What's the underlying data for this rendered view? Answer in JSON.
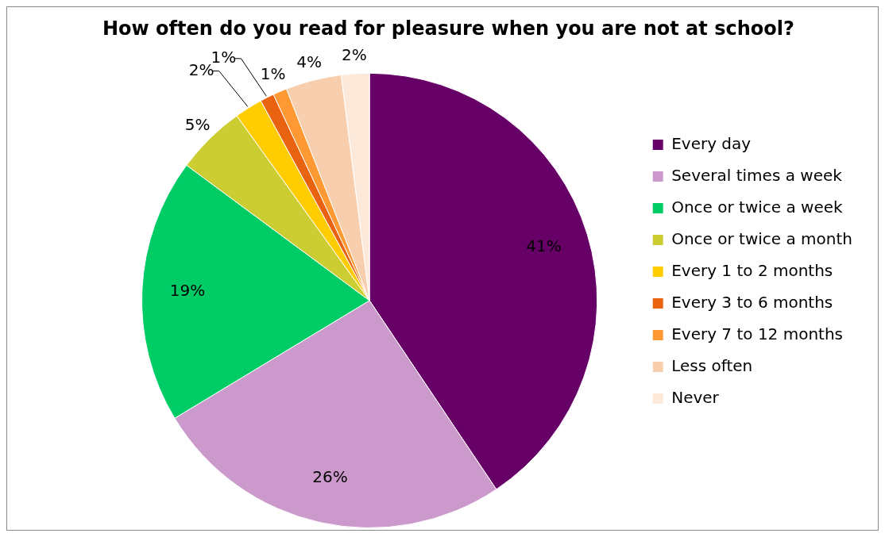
{
  "chart_data": {
    "type": "pie",
    "title": "How often do you read for pleasure when you are not at school?",
    "categories": [
      "Every day",
      "Several times a week",
      "Once or twice a week",
      "Once or twice a month",
      "Every 1 to 2 months",
      "Every 3 to 6 months",
      "Every 7 to 12 months",
      "Less often",
      "Never"
    ],
    "values": [
      41,
      26,
      19,
      5,
      2,
      1,
      1,
      4,
      2
    ],
    "value_labels": [
      "41%",
      "26%",
      "19%",
      "5%",
      "2%",
      "1%",
      "1%",
      "4%",
      "2%"
    ],
    "colors": [
      "#660066",
      "#cc99cc",
      "#00cc66",
      "#cccc33",
      "#ffcc00",
      "#e8620f",
      "#ff9933",
      "#f8cfae",
      "#fde9d9"
    ],
    "legend": "right"
  }
}
